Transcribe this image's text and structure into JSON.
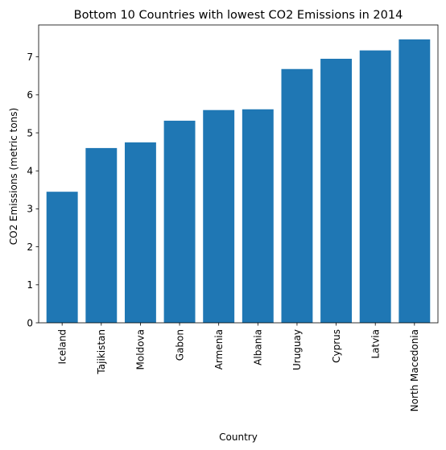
{
  "chart_data": {
    "type": "bar",
    "title": "Bottom 10 Countries with lowest CO2 Emissions in 2014",
    "xlabel": "Country",
    "ylabel": "CO2 Emissions (metric tons)",
    "categories": [
      "Iceland",
      "Tajikistan",
      "Moldova",
      "Gabon",
      "Armenia",
      "Albania",
      "Uruguay",
      "Cyprus",
      "Latvia",
      "North Macedonia"
    ],
    "values": [
      3.45,
      4.6,
      4.75,
      5.32,
      5.6,
      5.62,
      6.68,
      6.95,
      7.17,
      7.46
    ],
    "ylim": [
      0,
      7.84
    ],
    "yticks": [
      0,
      1,
      2,
      3,
      4,
      5,
      6,
      7
    ],
    "grid": false,
    "bar_color": "#1f77b4"
  }
}
